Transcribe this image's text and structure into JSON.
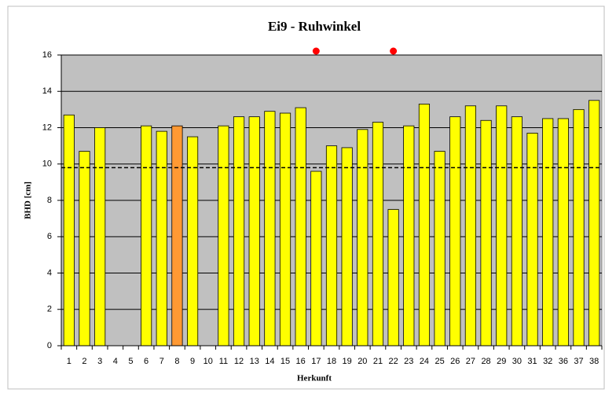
{
  "chart_data": {
    "type": "bar",
    "title": "Ei9 - Ruhwinkel",
    "x_label": "Herkunft",
    "y_label": "BHD [cm]",
    "categories": [
      "1",
      "2",
      "3",
      "4",
      "5",
      "6",
      "7",
      "8",
      "9",
      "10",
      "11",
      "12",
      "13",
      "14",
      "15",
      "16",
      "17",
      "18",
      "19",
      "20",
      "21",
      "22",
      "23",
      "24",
      "25",
      "26",
      "27",
      "28",
      "29",
      "30",
      "31",
      "32",
      "36",
      "37",
      "38"
    ],
    "values": [
      12.7,
      10.7,
      12.0,
      null,
      null,
      12.1,
      11.8,
      12.1,
      11.5,
      null,
      12.1,
      12.6,
      12.6,
      12.9,
      12.8,
      13.1,
      9.6,
      11.0,
      10.9,
      11.9,
      12.3,
      7.5,
      12.1,
      13.3,
      10.7,
      12.6,
      13.2,
      12.4,
      13.2,
      12.6,
      11.7,
      12.5,
      12.5,
      13.0,
      13.5
    ],
    "bar_colors": [
      "#ffff00",
      "#ffff00",
      "#ffff00",
      "#ffff00",
      "#ffff00",
      "#ffff00",
      "#ffff00",
      "#ff9933",
      "#ffff00",
      "#ffff00",
      "#ffff00",
      "#ffff00",
      "#ffff00",
      "#ffff00",
      "#ffff00",
      "#ffff00",
      "#ffff00",
      "#ffff00",
      "#ffff00",
      "#ffff00",
      "#ffff00",
      "#ffff00",
      "#ffff00",
      "#ffff00",
      "#ffff00",
      "#ffff00",
      "#ffff00",
      "#ffff00",
      "#ffff00",
      "#ffff00",
      "#ffff00",
      "#ffff00",
      "#ffff00",
      "#ffff00",
      "#ffff00"
    ],
    "markers": {
      "color": "#ff0000",
      "values": [
        null,
        null,
        null,
        null,
        null,
        null,
        null,
        null,
        null,
        null,
        null,
        null,
        null,
        null,
        null,
        null,
        16,
        null,
        null,
        null,
        null,
        16,
        null,
        null,
        null,
        null,
        null,
        null,
        null,
        null,
        null,
        null,
        null,
        null,
        null
      ]
    },
    "reference_line": 9.8,
    "ylim": [
      0,
      16
    ],
    "yticks": [
      0,
      2,
      4,
      6,
      8,
      10,
      12,
      14,
      16
    ],
    "grid": true,
    "plot_background": "#c0c0c0"
  }
}
